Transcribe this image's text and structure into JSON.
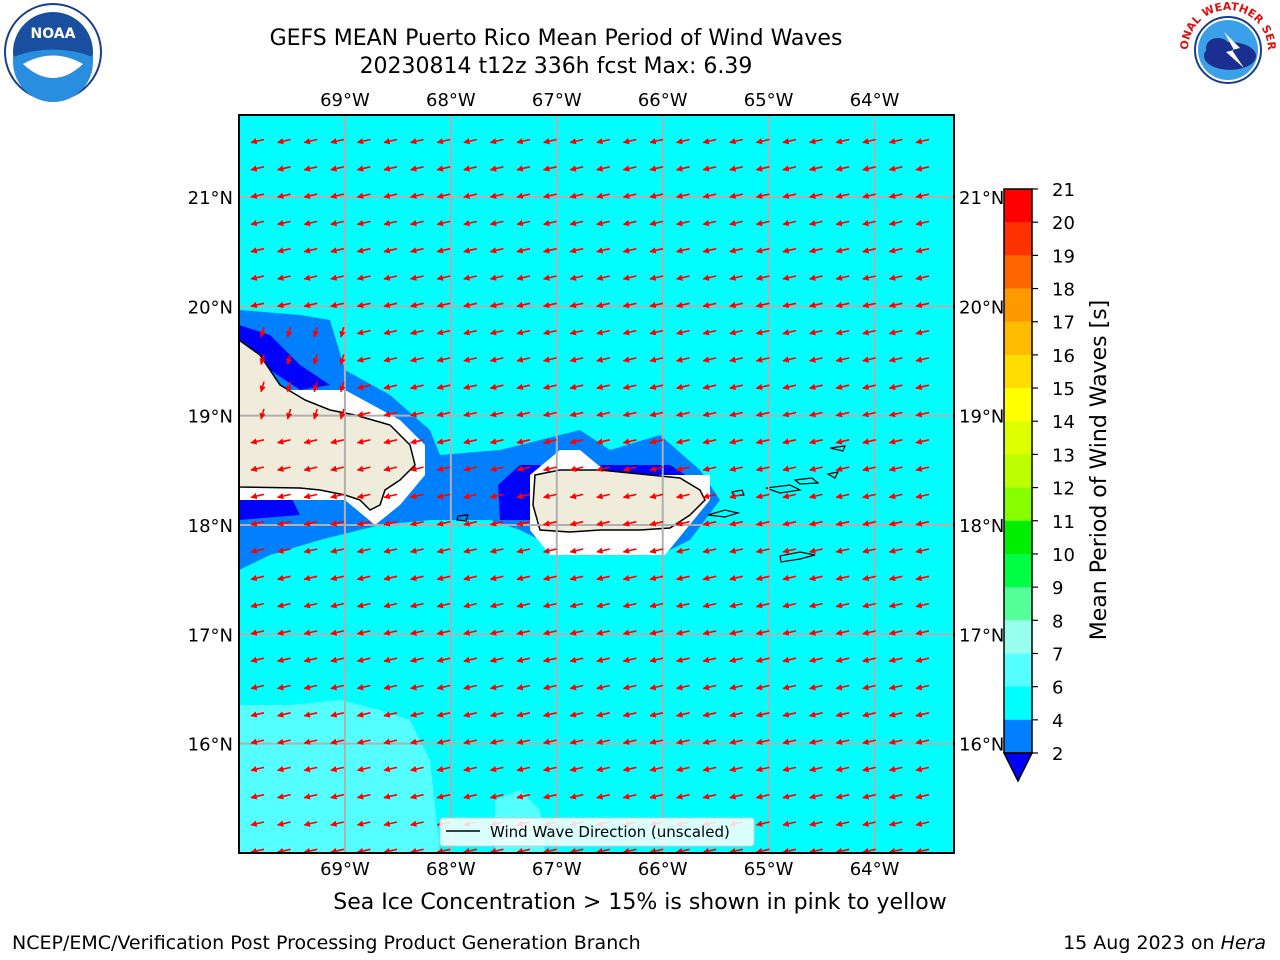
{
  "title": {
    "line1": "GEFS MEAN Puerto Rico Mean Period of Wind Waves",
    "line2": "20230814 t12z 336h fcst   Max: 6.39"
  },
  "logos": {
    "left": "noaa-logo",
    "left_text": "NOAA",
    "right": "nws-logo",
    "right_text": "NATIONAL WEATHER SERVICE"
  },
  "map": {
    "lon_labels": [
      "69°W",
      "68°W",
      "67°W",
      "66°W",
      "65°W",
      "64°W"
    ],
    "lat_labels": [
      "21°N",
      "20°N",
      "19°N",
      "18°N",
      "17°N",
      "16°N"
    ],
    "lon_range": [
      -70.0,
      -63.25
    ],
    "lat_range": [
      15.0,
      21.75
    ],
    "legend_label": "Wind Wave Direction (unscaled)",
    "arrow_color": "#ff0000",
    "ocean_color": "#00ffff",
    "land_color": "#efecdc",
    "grid": true
  },
  "colorbar": {
    "label": "Mean Period of Wind Waves [s]",
    "ticks": [
      "21",
      "20",
      "19",
      "18",
      "17",
      "16",
      "15",
      "14",
      "13",
      "12",
      "11",
      "10",
      "9",
      "8",
      "7",
      "6",
      "4",
      "2"
    ],
    "colors": [
      "#ff0000",
      "#ff3300",
      "#ff6600",
      "#ff9900",
      "#ffbb00",
      "#ffdd00",
      "#ffff00",
      "#ddff00",
      "#bbff00",
      "#88ff00",
      "#00ee00",
      "#00ff44",
      "#55ff99",
      "#99ffee",
      "#55ffff",
      "#00ffff",
      "#0080ff",
      "#0000ff"
    ]
  },
  "subcaption": "Sea Ice Concentration > 15% is shown in pink to yellow",
  "footer": {
    "left": "NCEP/EMC/Verification Post Processing Product Generation Branch",
    "right_date": "15 Aug 2023 on ",
    "right_host": "Hera"
  }
}
